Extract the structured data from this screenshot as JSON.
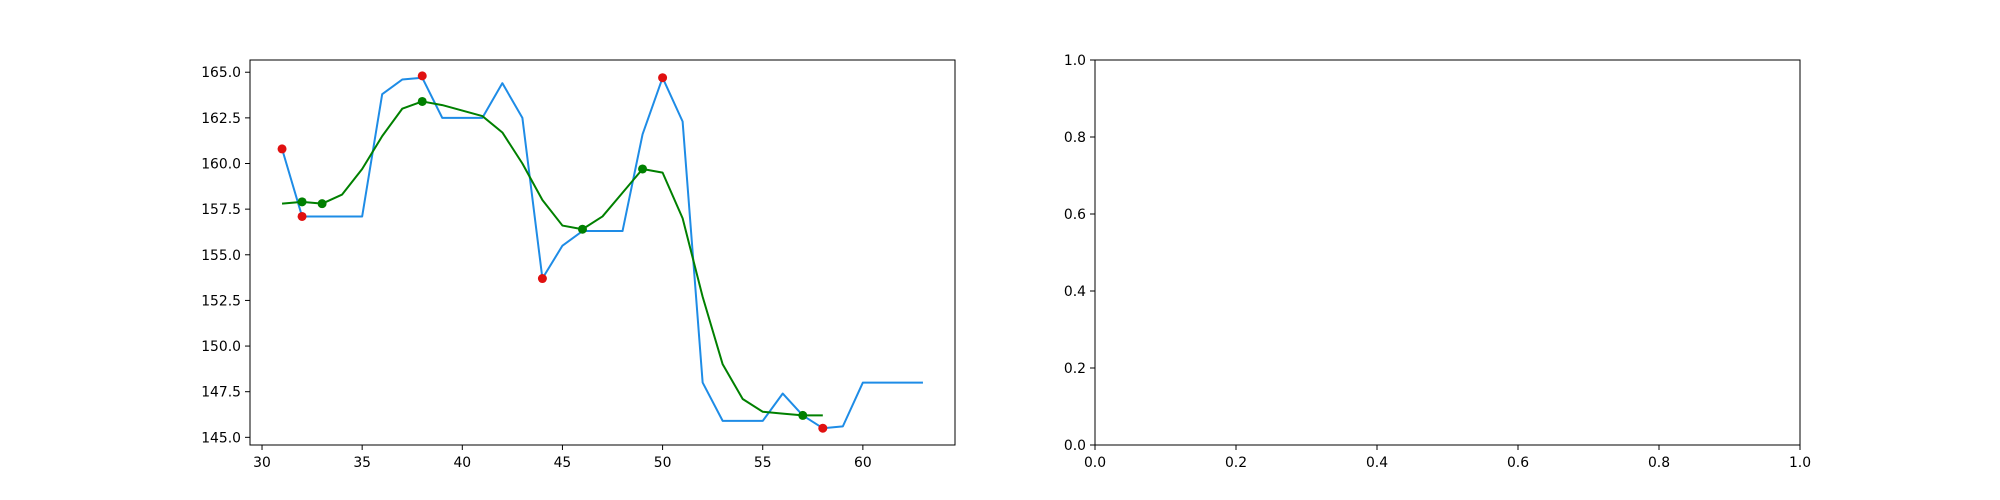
{
  "chart_data": [
    {
      "type": "line",
      "title": "",
      "xlabel": "",
      "ylabel": "",
      "xlim": [
        29.4,
        64.6
      ],
      "ylim": [
        144.58,
        165.67
      ],
      "xticks": [
        30,
        35,
        40,
        45,
        50,
        55,
        60
      ],
      "xtick_labels": [
        "30",
        "35",
        "40",
        "45",
        "50",
        "55",
        "60"
      ],
      "yticks": [
        145.0,
        147.5,
        150.0,
        152.5,
        155.0,
        157.5,
        160.0,
        162.5,
        165.0
      ],
      "ytick_labels": [
        "145.0",
        "147.5",
        "150.0",
        "152.5",
        "155.0",
        "157.5",
        "160.0",
        "162.5",
        "165.0"
      ],
      "grid": false,
      "series": [
        {
          "kind": "line",
          "color": "#1e8ce6",
          "x": [
            31,
            32,
            33,
            34,
            35,
            36,
            37,
            38,
            39,
            40,
            41,
            42,
            43,
            44,
            45,
            46,
            47,
            48,
            49,
            50,
            51,
            52,
            53,
            54,
            55,
            56,
            57,
            58,
            59,
            60,
            61,
            62,
            63
          ],
          "y": [
            160.8,
            157.1,
            157.1,
            157.1,
            157.1,
            163.8,
            164.6,
            164.7,
            162.5,
            162.5,
            162.5,
            164.4,
            162.5,
            153.7,
            155.5,
            156.3,
            156.3,
            156.3,
            161.6,
            164.7,
            162.3,
            148.0,
            145.9,
            145.9,
            145.9,
            147.4,
            146.2,
            145.5,
            145.6,
            148.0,
            148.0,
            148.0,
            148.0
          ]
        },
        {
          "kind": "line",
          "color": "#008000",
          "x": [
            31,
            32,
            33,
            34,
            35,
            36,
            37,
            38,
            39,
            40,
            41,
            42,
            43,
            44,
            45,
            46,
            47,
            48,
            49,
            50,
            51,
            52,
            53,
            54,
            55,
            56,
            57,
            58
          ],
          "y": [
            157.8,
            157.9,
            157.8,
            158.3,
            159.7,
            161.5,
            163.0,
            163.4,
            163.2,
            162.9,
            162.6,
            161.7,
            160.0,
            158.0,
            156.6,
            156.4,
            157.1,
            158.4,
            159.7,
            159.5,
            157.0,
            152.7,
            149.0,
            147.1,
            146.4,
            146.3,
            146.2,
            146.2
          ]
        },
        {
          "kind": "scatter",
          "color": "#e01010",
          "x": [
            31,
            32,
            38,
            44,
            50,
            58
          ],
          "y": [
            160.8,
            157.1,
            164.8,
            153.7,
            164.7,
            145.5
          ]
        },
        {
          "kind": "scatter",
          "color": "#008000",
          "x": [
            32,
            33,
            38,
            46,
            49,
            57
          ],
          "y": [
            157.9,
            157.8,
            163.4,
            156.4,
            159.7,
            146.2
          ]
        }
      ]
    },
    {
      "type": "line",
      "title": "",
      "xlabel": "",
      "ylabel": "",
      "xlim": [
        0.0,
        1.0
      ],
      "ylim": [
        0.0,
        1.0
      ],
      "xticks": [
        0.0,
        0.2,
        0.4,
        0.6,
        0.8,
        1.0
      ],
      "xtick_labels": [
        "0.0",
        "0.2",
        "0.4",
        "0.6",
        "0.8",
        "1.0"
      ],
      "yticks": [
        0.0,
        0.2,
        0.4,
        0.6,
        0.8,
        1.0
      ],
      "ytick_labels": [
        "0.0",
        "0.2",
        "0.4",
        "0.6",
        "0.8",
        "1.0"
      ],
      "grid": false,
      "series": []
    }
  ]
}
